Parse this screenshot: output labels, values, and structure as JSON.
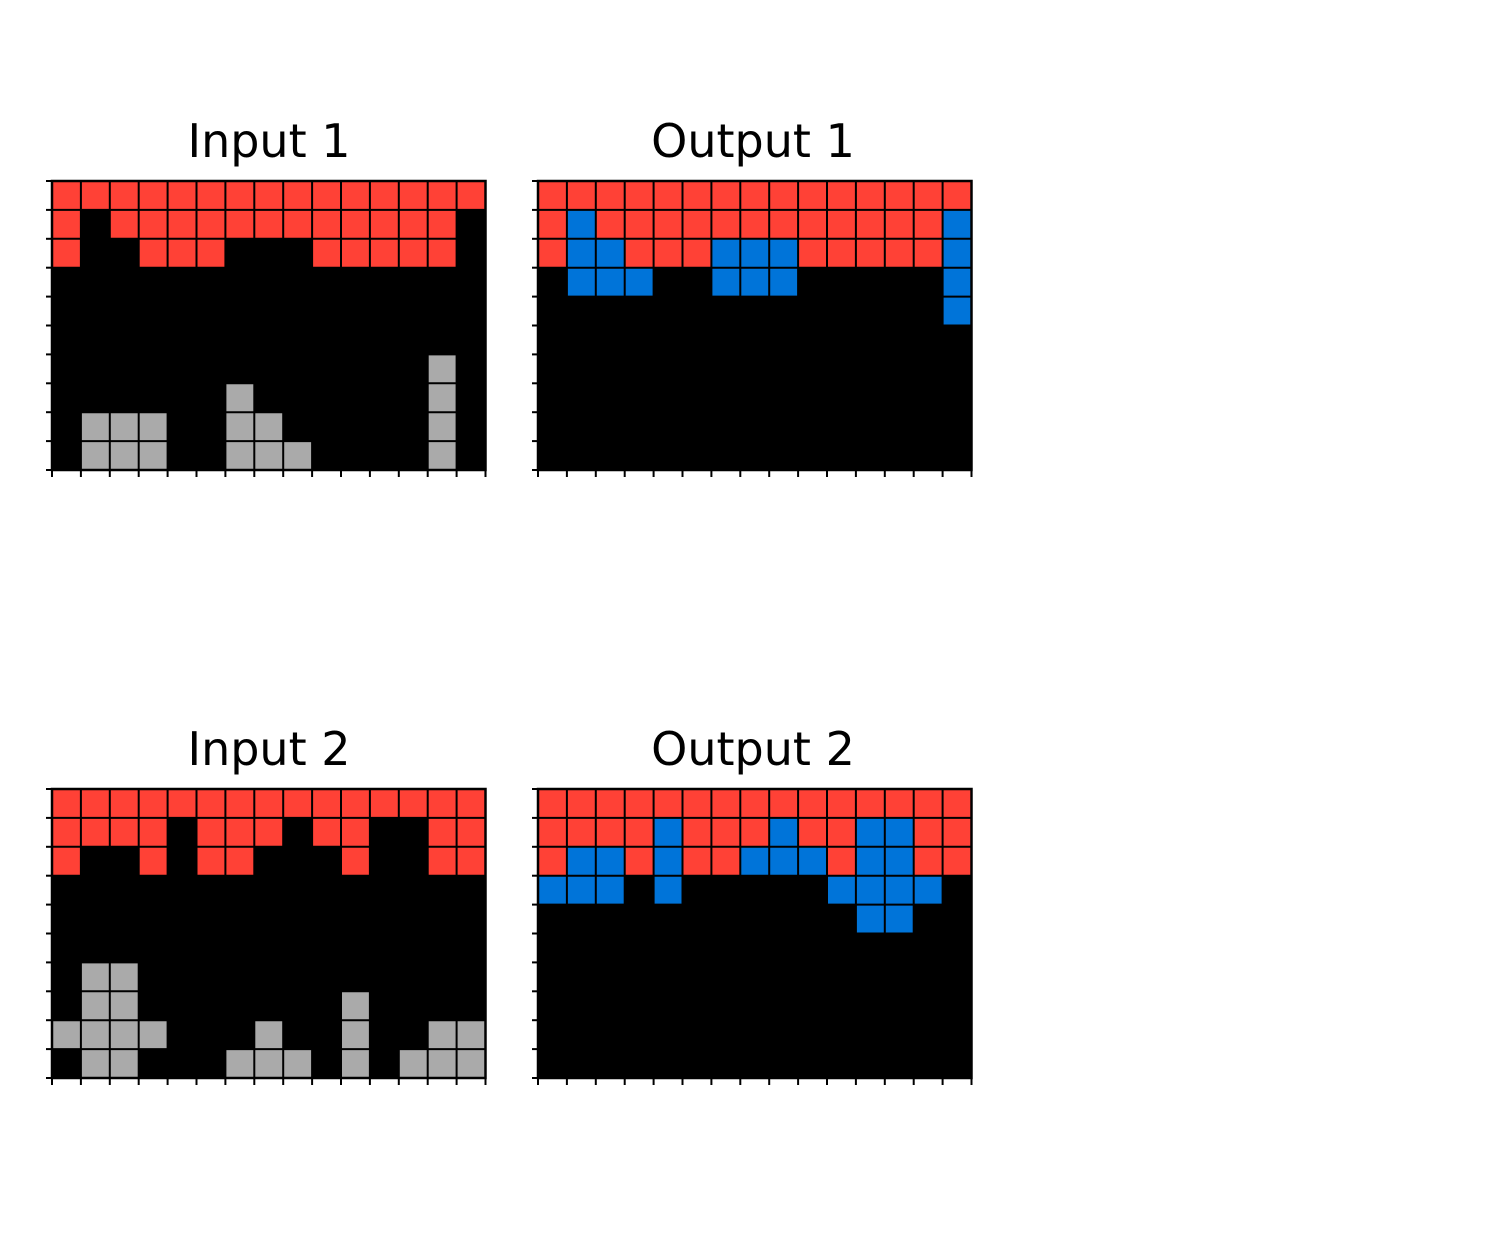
{
  "palette": {
    "0": "#000000",
    "1": "#0074D9",
    "2": "#FF4136",
    "5": "#AAAAAA"
  },
  "grid_line_color": "#000000",
  "panels": [
    {
      "title": "Input 1",
      "grid": [
        [
          2,
          2,
          2,
          2,
          2,
          2,
          2,
          2,
          2,
          2,
          2,
          2,
          2,
          2,
          2
        ],
        [
          2,
          0,
          2,
          2,
          2,
          2,
          2,
          2,
          2,
          2,
          2,
          2,
          2,
          2,
          0
        ],
        [
          2,
          0,
          0,
          2,
          2,
          2,
          0,
          0,
          0,
          2,
          2,
          2,
          2,
          2,
          0
        ],
        [
          0,
          0,
          0,
          0,
          0,
          0,
          0,
          0,
          0,
          0,
          0,
          0,
          0,
          0,
          0
        ],
        [
          0,
          0,
          0,
          0,
          0,
          0,
          0,
          0,
          0,
          0,
          0,
          0,
          0,
          0,
          0
        ],
        [
          0,
          0,
          0,
          0,
          0,
          0,
          0,
          0,
          0,
          0,
          0,
          0,
          0,
          0,
          0
        ],
        [
          0,
          0,
          0,
          0,
          0,
          0,
          0,
          0,
          0,
          0,
          0,
          0,
          0,
          5,
          0
        ],
        [
          0,
          0,
          0,
          0,
          0,
          0,
          5,
          0,
          0,
          0,
          0,
          0,
          0,
          5,
          0
        ],
        [
          0,
          5,
          5,
          5,
          0,
          0,
          5,
          5,
          0,
          0,
          0,
          0,
          0,
          5,
          0
        ],
        [
          0,
          5,
          5,
          5,
          0,
          0,
          5,
          5,
          5,
          0,
          0,
          0,
          0,
          5,
          0
        ]
      ]
    },
    {
      "title": "Output 1",
      "grid": [
        [
          2,
          2,
          2,
          2,
          2,
          2,
          2,
          2,
          2,
          2,
          2,
          2,
          2,
          2,
          2
        ],
        [
          2,
          1,
          2,
          2,
          2,
          2,
          2,
          2,
          2,
          2,
          2,
          2,
          2,
          2,
          1
        ],
        [
          2,
          1,
          1,
          2,
          2,
          2,
          1,
          1,
          1,
          2,
          2,
          2,
          2,
          2,
          1
        ],
        [
          0,
          1,
          1,
          1,
          0,
          0,
          1,
          1,
          1,
          0,
          0,
          0,
          0,
          0,
          1
        ],
        [
          0,
          0,
          0,
          0,
          0,
          0,
          0,
          0,
          0,
          0,
          0,
          0,
          0,
          0,
          1
        ],
        [
          0,
          0,
          0,
          0,
          0,
          0,
          0,
          0,
          0,
          0,
          0,
          0,
          0,
          0,
          0
        ],
        [
          0,
          0,
          0,
          0,
          0,
          0,
          0,
          0,
          0,
          0,
          0,
          0,
          0,
          0,
          0
        ],
        [
          0,
          0,
          0,
          0,
          0,
          0,
          0,
          0,
          0,
          0,
          0,
          0,
          0,
          0,
          0
        ],
        [
          0,
          0,
          0,
          0,
          0,
          0,
          0,
          0,
          0,
          0,
          0,
          0,
          0,
          0,
          0
        ],
        [
          0,
          0,
          0,
          0,
          0,
          0,
          0,
          0,
          0,
          0,
          0,
          0,
          0,
          0,
          0
        ]
      ]
    },
    {
      "title": "Input 2",
      "grid": [
        [
          2,
          2,
          2,
          2,
          2,
          2,
          2,
          2,
          2,
          2,
          2,
          2,
          2,
          2,
          2
        ],
        [
          2,
          2,
          2,
          2,
          0,
          2,
          2,
          2,
          0,
          2,
          2,
          0,
          0,
          2,
          2
        ],
        [
          2,
          0,
          0,
          2,
          0,
          2,
          2,
          0,
          0,
          0,
          2,
          0,
          0,
          2,
          2
        ],
        [
          0,
          0,
          0,
          0,
          0,
          0,
          0,
          0,
          0,
          0,
          0,
          0,
          0,
          0,
          0
        ],
        [
          0,
          0,
          0,
          0,
          0,
          0,
          0,
          0,
          0,
          0,
          0,
          0,
          0,
          0,
          0
        ],
        [
          0,
          0,
          0,
          0,
          0,
          0,
          0,
          0,
          0,
          0,
          0,
          0,
          0,
          0,
          0
        ],
        [
          0,
          5,
          5,
          0,
          0,
          0,
          0,
          0,
          0,
          0,
          0,
          0,
          0,
          0,
          0
        ],
        [
          0,
          5,
          5,
          0,
          0,
          0,
          0,
          0,
          0,
          0,
          5,
          0,
          0,
          0,
          0
        ],
        [
          5,
          5,
          5,
          5,
          0,
          0,
          0,
          5,
          0,
          0,
          5,
          0,
          0,
          5,
          5
        ],
        [
          0,
          5,
          5,
          0,
          0,
          0,
          5,
          5,
          5,
          0,
          5,
          0,
          5,
          5,
          5
        ]
      ]
    },
    {
      "title": "Output 2",
      "grid": [
        [
          2,
          2,
          2,
          2,
          2,
          2,
          2,
          2,
          2,
          2,
          2,
          2,
          2,
          2,
          2
        ],
        [
          2,
          2,
          2,
          2,
          1,
          2,
          2,
          2,
          1,
          2,
          2,
          1,
          1,
          2,
          2
        ],
        [
          2,
          1,
          1,
          2,
          1,
          2,
          2,
          1,
          1,
          1,
          2,
          1,
          1,
          2,
          2
        ],
        [
          1,
          1,
          1,
          0,
          1,
          0,
          0,
          0,
          0,
          0,
          1,
          1,
          1,
          1,
          0
        ],
        [
          0,
          0,
          0,
          0,
          0,
          0,
          0,
          0,
          0,
          0,
          0,
          1,
          1,
          0,
          0
        ],
        [
          0,
          0,
          0,
          0,
          0,
          0,
          0,
          0,
          0,
          0,
          0,
          0,
          0,
          0,
          0
        ],
        [
          0,
          0,
          0,
          0,
          0,
          0,
          0,
          0,
          0,
          0,
          0,
          0,
          0,
          0,
          0
        ],
        [
          0,
          0,
          0,
          0,
          0,
          0,
          0,
          0,
          0,
          0,
          0,
          0,
          0,
          0,
          0
        ],
        [
          0,
          0,
          0,
          0,
          0,
          0,
          0,
          0,
          0,
          0,
          0,
          0,
          0,
          0,
          0
        ],
        [
          0,
          0,
          0,
          0,
          0,
          0,
          0,
          0,
          0,
          0,
          0,
          0,
          0,
          0,
          0
        ]
      ]
    }
  ]
}
